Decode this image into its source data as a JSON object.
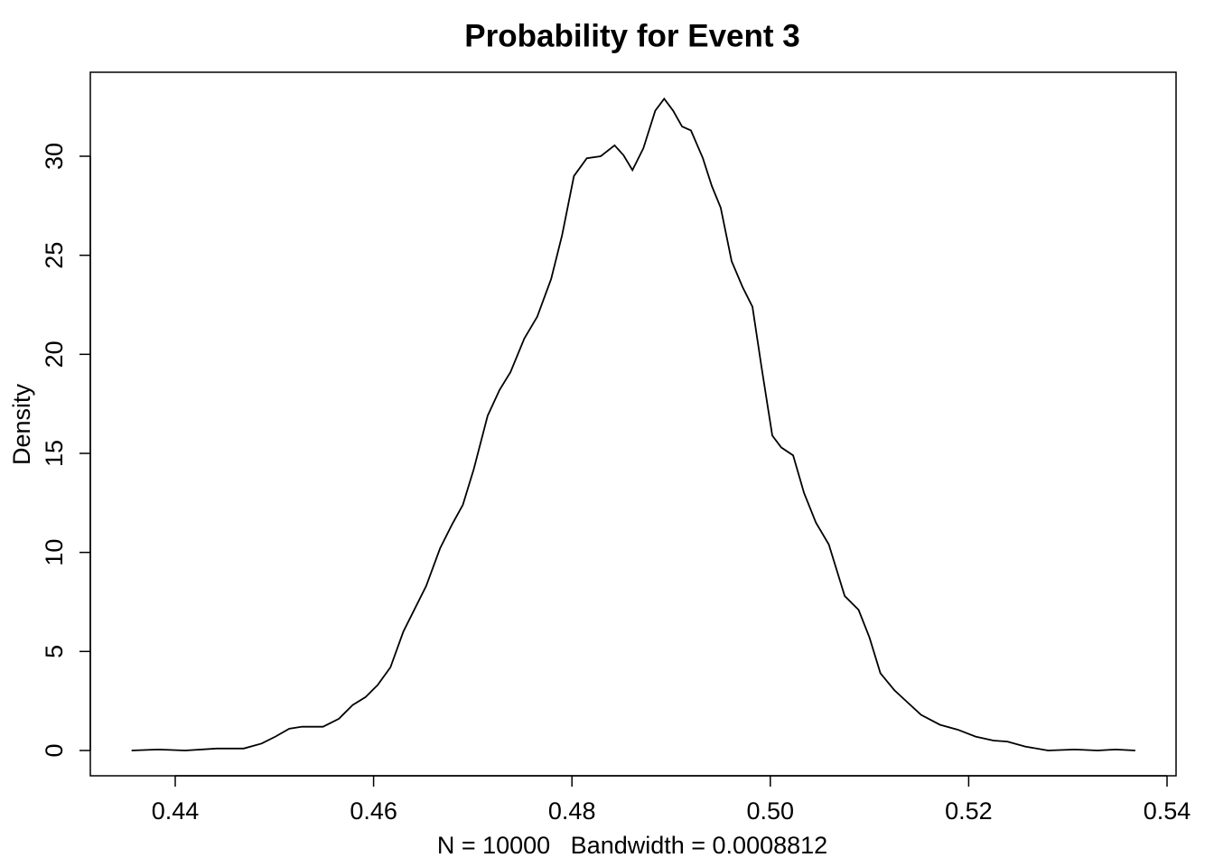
{
  "chart_data": {
    "type": "line",
    "title": "Probability for Event 3",
    "x_label": "N = 10000   Bandwidth = 0.0008812",
    "y_label": "Density",
    "color": "#000000",
    "xlim": [
      0.43144,
      0.54091
    ],
    "ylim": [
      -1.277,
      34.24
    ],
    "xticks": [
      0.44,
      0.46,
      0.48,
      {
        "value": 0.5,
        "label": "0.50"
      },
      0.52,
      0.54
    ],
    "yticks": [
      0,
      5,
      10,
      15,
      20,
      25,
      30
    ],
    "x": [
      0.4356,
      0.4383,
      0.441,
      0.4442,
      0.4469,
      0.4487,
      0.4501,
      0.4515,
      0.4528,
      0.4549,
      0.4565,
      0.4579,
      0.4592,
      0.4604,
      0.4617,
      0.463,
      0.464,
      0.4653,
      0.4667,
      0.4679,
      0.469,
      0.4701,
      0.4715,
      0.4727,
      0.4738,
      0.4752,
      0.4765,
      0.4779,
      0.479,
      0.4802,
      0.4815,
      0.4829,
      0.4843,
      0.4852,
      0.4861,
      0.4872,
      0.4884,
      0.4893,
      0.4902,
      0.4911,
      0.492,
      0.4932,
      0.4941,
      0.495,
      0.4961,
      0.4972,
      0.4982,
      0.4991,
      0.5002,
      0.5011,
      0.5023,
      0.5034,
      0.5046,
      0.5059,
      0.5075,
      0.5089,
      0.51,
      0.5111,
      0.5125,
      0.5139,
      0.5152,
      0.5171,
      0.5189,
      0.5207,
      0.5225,
      0.5239,
      0.5257,
      0.528,
      0.5307,
      0.533,
      0.5348,
      0.5368
    ],
    "values": [
      0,
      0.05,
      0,
      0.1,
      0.1,
      0.35,
      0.7,
      1.1,
      1.2,
      1.2,
      1.6,
      2.3,
      2.7,
      3.3,
      4.2,
      6.0,
      7.0,
      8.3,
      10.2,
      11.4,
      12.4,
      14.2,
      16.9,
      18.2,
      19.1,
      20.8,
      21.9,
      23.8,
      26.0,
      29.0,
      29.9,
      30.0,
      30.55,
      30.05,
      29.3,
      30.4,
      32.3,
      32.9,
      32.3,
      31.5,
      31.3,
      29.9,
      28.5,
      27.4,
      24.7,
      23.4,
      22.4,
      19.4,
      15.9,
      15.3,
      14.9,
      13.0,
      11.5,
      10.4,
      7.8,
      7.1,
      5.7,
      3.9,
      3.05,
      2.4,
      1.8,
      1.3,
      1.05,
      0.7,
      0.5,
      0.45,
      0.2,
      0,
      0.05,
      0,
      0.05,
      0
    ]
  }
}
